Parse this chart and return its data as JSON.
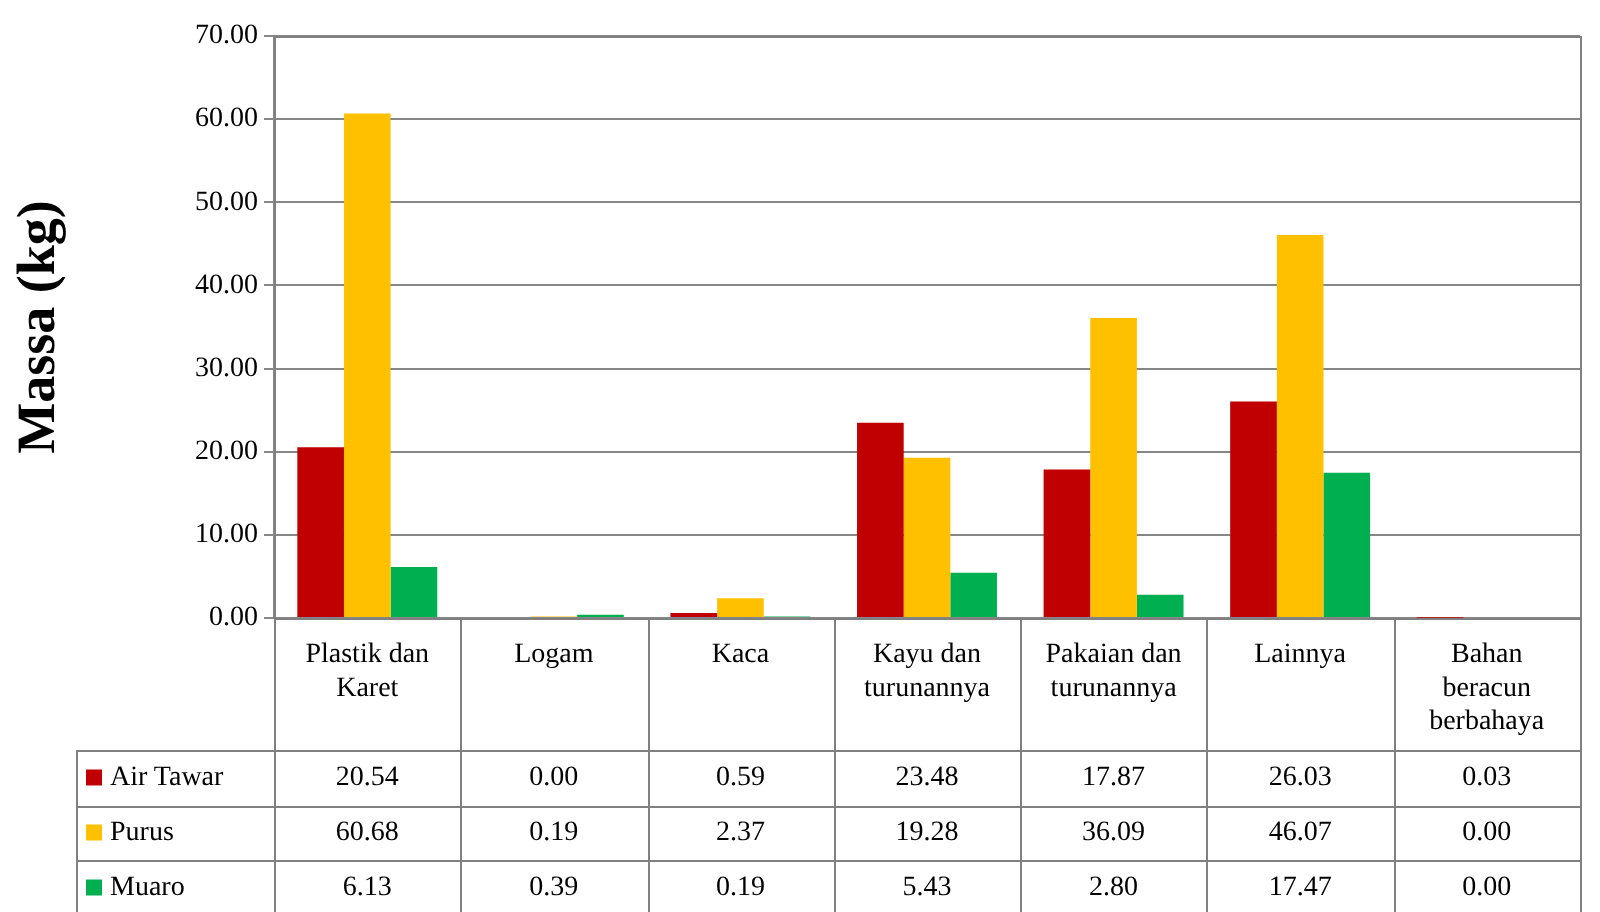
{
  "chart_data": {
    "type": "bar",
    "ylabel": "Massa (kg)",
    "categories": [
      "Plastik dan Karet",
      "Logam",
      "Kaca",
      "Kayu dan turunannya",
      "Pakaian dan turunannya",
      "Lainnya",
      "Bahan beracun berbahaya"
    ],
    "series": [
      {
        "name": "Air Tawar",
        "color": "#c00000",
        "values": [
          20.54,
          0,
          0.59,
          23.48,
          17.87,
          26.03,
          0.03
        ],
        "value_labels": [
          "20.54",
          "0.00",
          "0.59",
          "23.48",
          "17.87",
          "26.03",
          "0.03"
        ]
      },
      {
        "name": "Purus",
        "color": "#ffc000",
        "values": [
          60.68,
          0.19,
          2.37,
          19.28,
          36.09,
          46.07,
          0
        ],
        "value_labels": [
          "60.68",
          "0.19",
          "2.37",
          "19.28",
          "36.09",
          "46.07",
          "0.00"
        ]
      },
      {
        "name": "Muaro",
        "color": "#00b050",
        "values": [
          6.13,
          0.39,
          0.19,
          5.43,
          2.8,
          17.47,
          0
        ],
        "value_labels": [
          "6.13",
          "0.39",
          "0.19",
          "5.43",
          "2.80",
          "17.47",
          "0.00"
        ]
      }
    ],
    "ylim": [
      0,
      70
    ],
    "yticks": [
      {
        "value": 0,
        "label": "0.00"
      },
      {
        "value": 10,
        "label": "10.00"
      },
      {
        "value": 20,
        "label": "20.00"
      },
      {
        "value": 30,
        "label": "30.00"
      },
      {
        "value": 40,
        "label": "40.00"
      },
      {
        "value": 50,
        "label": "50.00"
      },
      {
        "value": 60,
        "label": "60.00"
      },
      {
        "value": 70,
        "label": "70.00"
      }
    ],
    "grid": "y",
    "legend": "bottom"
  }
}
